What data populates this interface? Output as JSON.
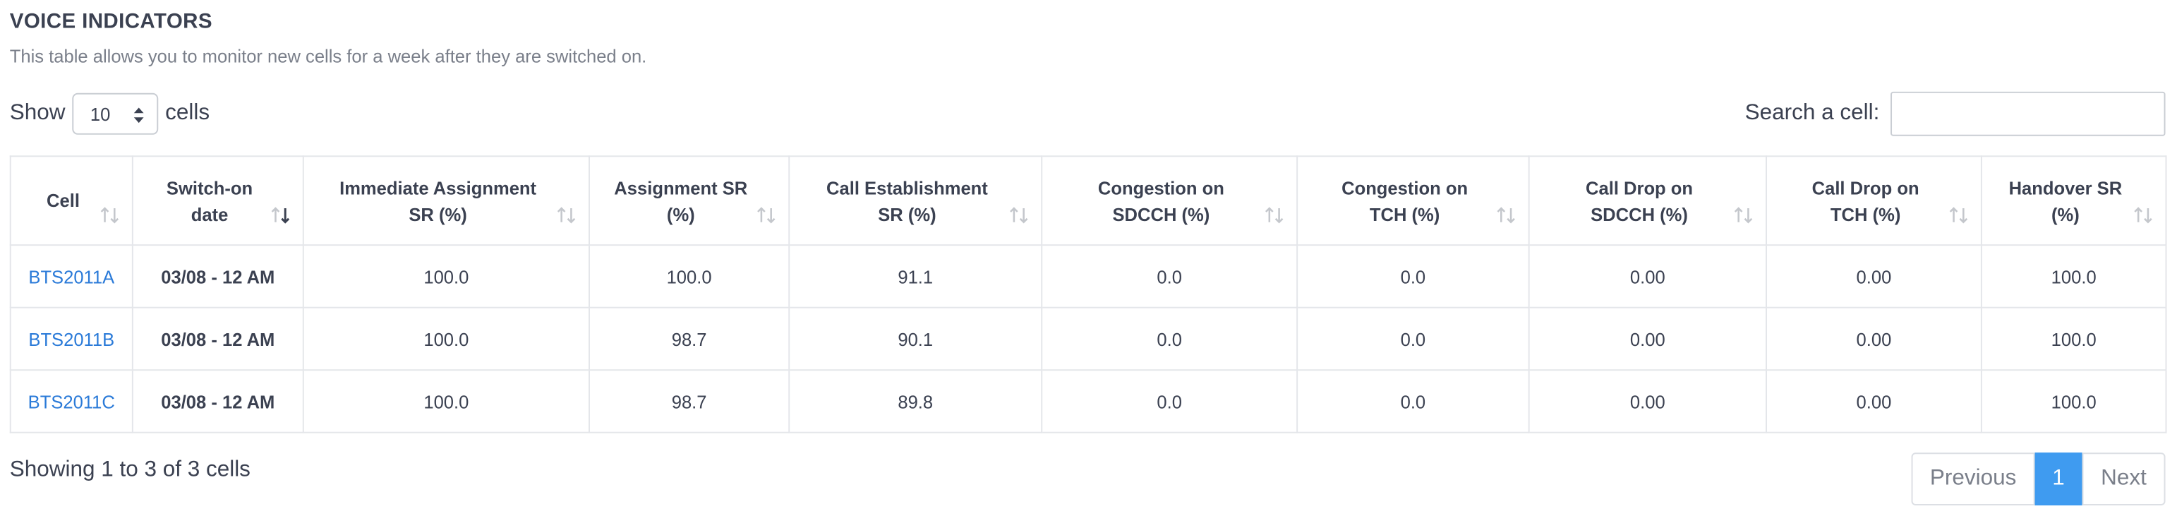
{
  "header": {
    "title": "VOICE INDICATORS",
    "subtitle": "This table allows you to monitor new cells for a week after they are switched on."
  },
  "length_control": {
    "prefix": "Show",
    "value": "10",
    "suffix": "cells"
  },
  "search": {
    "label": "Search a cell:",
    "value": ""
  },
  "table": {
    "columns": [
      {
        "line1": "Cell",
        "line2": "",
        "sorted": false
      },
      {
        "line1": "Switch-on",
        "line2": "date",
        "sorted": true
      },
      {
        "line1": "Immediate Assignment",
        "line2": "SR (%)",
        "sorted": false
      },
      {
        "line1": "Assignment SR",
        "line2": "(%)",
        "sorted": false
      },
      {
        "line1": "Call Establishment",
        "line2": "SR (%)",
        "sorted": false
      },
      {
        "line1": "Congestion on",
        "line2": "SDCCH (%)",
        "sorted": false
      },
      {
        "line1": "Congestion on",
        "line2": "TCH (%)",
        "sorted": false
      },
      {
        "line1": "Call Drop on",
        "line2": "SDCCH (%)",
        "sorted": false
      },
      {
        "line1": "Call Drop on",
        "line2": "TCH (%)",
        "sorted": false
      },
      {
        "line1": "Handover SR",
        "line2": "(%)",
        "sorted": false
      }
    ],
    "rows": [
      [
        "BTS2011A",
        "03/08 - 12 AM",
        "100.0",
        "100.0",
        "91.1",
        "0.0",
        "0.0",
        "0.00",
        "0.00",
        "100.0"
      ],
      [
        "BTS2011B",
        "03/08 - 12 AM",
        "100.0",
        "98.7",
        "90.1",
        "0.0",
        "0.0",
        "0.00",
        "0.00",
        "100.0"
      ],
      [
        "BTS2011C",
        "03/08 - 12 AM",
        "100.0",
        "98.7",
        "89.8",
        "0.0",
        "0.0",
        "0.00",
        "0.00",
        "100.0"
      ]
    ]
  },
  "footer": {
    "info": "Showing 1 to 3 of 3 cells",
    "previous": "Previous",
    "page": "1",
    "next": "Next"
  },
  "colors": {
    "link": "#2a7ad8",
    "active_page": "#3f9bf0",
    "text": "#3b4151",
    "muted": "#7a7f8a",
    "border": "#e4e6ea"
  },
  "icons": {
    "sort_unsorted": "sort-updown-icon",
    "sort_active": "sort-descending-icon",
    "select_arrows": "select-updown-icon"
  }
}
